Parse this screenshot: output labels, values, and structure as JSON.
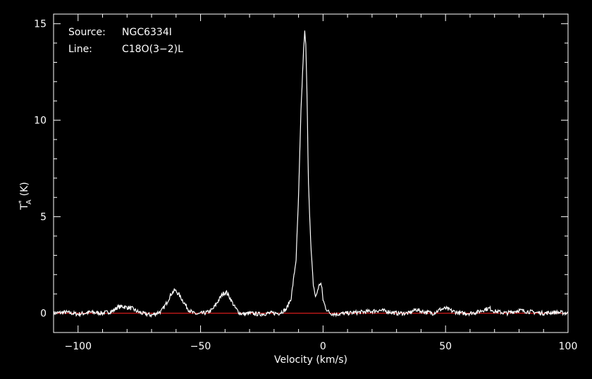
{
  "chart_data": {
    "type": "line",
    "xlabel": "Velocity (km/s)",
    "ylabel": "T",
    "ylabel_sub": "A",
    "ylabel_sup": "*",
    "ylabel_unit": "(K)",
    "xlim": [
      -110,
      100
    ],
    "ylim": [
      -1,
      15.5
    ],
    "x_ticks": [
      -100,
      -50,
      0,
      50,
      100
    ],
    "x_tick_labels": [
      "−100",
      "−50",
      "0",
      "50",
      "100"
    ],
    "y_ticks": [
      0,
      5,
      10,
      15
    ],
    "y_tick_labels": [
      "0",
      "5",
      "10",
      "15"
    ],
    "x_minor_step": 10,
    "y_minor_step": 1,
    "annotation": {
      "source_key": "Source:",
      "source_value": "NGC6334I",
      "line_key": "Line:",
      "line_value": "C18O(3−2)L"
    },
    "baseline": {
      "y": 0,
      "color": "#ff2020"
    },
    "series": [
      {
        "color": "#ffffff",
        "x": [
          -110,
          -105,
          -100,
          -95,
          -90,
          -86,
          -84,
          -82,
          -80,
          -78,
          -76,
          -74,
          -70,
          -66,
          -64,
          -62,
          -60.5,
          -59,
          -57,
          -55,
          -53,
          -51,
          -49,
          -47,
          -45,
          -43,
          -41,
          -39.5,
          -38,
          -36,
          -34,
          -32,
          -30,
          -26,
          -22,
          -18,
          -15,
          -13,
          -11,
          -10,
          -9,
          -8,
          -7.5,
          -7,
          -6.5,
          -6,
          -5,
          -4,
          -3,
          -2,
          -1,
          -0.5,
          0,
          1,
          2,
          3,
          5,
          10,
          15,
          20,
          23,
          26,
          30,
          35,
          38,
          40,
          45,
          48,
          50,
          53,
          56,
          60,
          63,
          66,
          68,
          70,
          75,
          80,
          83,
          86,
          90,
          95,
          100
        ],
        "y": [
          0,
          0.05,
          -0.05,
          0.05,
          0,
          0.1,
          0.3,
          0.35,
          0.3,
          0.25,
          0.1,
          0,
          -0.1,
          0.1,
          0.5,
          1.0,
          1.2,
          1.0,
          0.6,
          0.2,
          0,
          -0.05,
          0,
          0.05,
          0.2,
          0.6,
          1.0,
          1.1,
          0.8,
          0.3,
          0,
          -0.05,
          0,
          -0.05,
          0,
          0,
          0.2,
          0.8,
          2.8,
          6.0,
          10.5,
          13.5,
          14.6,
          13.8,
          11.0,
          7.0,
          3.5,
          1.5,
          0.8,
          1.3,
          1.6,
          1.3,
          0.7,
          0.3,
          0.1,
          0,
          -0.05,
          0,
          0.05,
          0.1,
          0.15,
          0.1,
          0,
          0,
          0.2,
          0.1,
          0,
          0.2,
          0.25,
          0.1,
          0,
          0,
          0.05,
          0.2,
          0.25,
          0.1,
          0,
          0.15,
          0.1,
          0.05,
          0,
          0.05,
          0
        ]
      }
    ]
  }
}
